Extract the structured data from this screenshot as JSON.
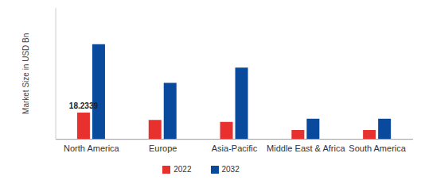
{
  "chart_data": {
    "type": "bar",
    "y_label": "Market Size in USD Bn",
    "categories": [
      "North America",
      "Europe",
      "Asia-Pacific",
      "Middle East & Africa",
      "South America"
    ],
    "series": [
      {
        "name": "2022",
        "color": "#e8302f",
        "values": [
          18.2339,
          13.3,
          11.9,
          6.3,
          6.3
        ],
        "value_labels": [
          "18.2339",
          null,
          null,
          null,
          null
        ]
      },
      {
        "name": "2032",
        "color": "#0a4a9c",
        "values": [
          65.2,
          38.6,
          49.1,
          14.0,
          14.0
        ]
      }
    ],
    "ylim": [
      0,
      90
    ],
    "grid": false,
    "legend": "bottom",
    "tick_labels": "x"
  }
}
